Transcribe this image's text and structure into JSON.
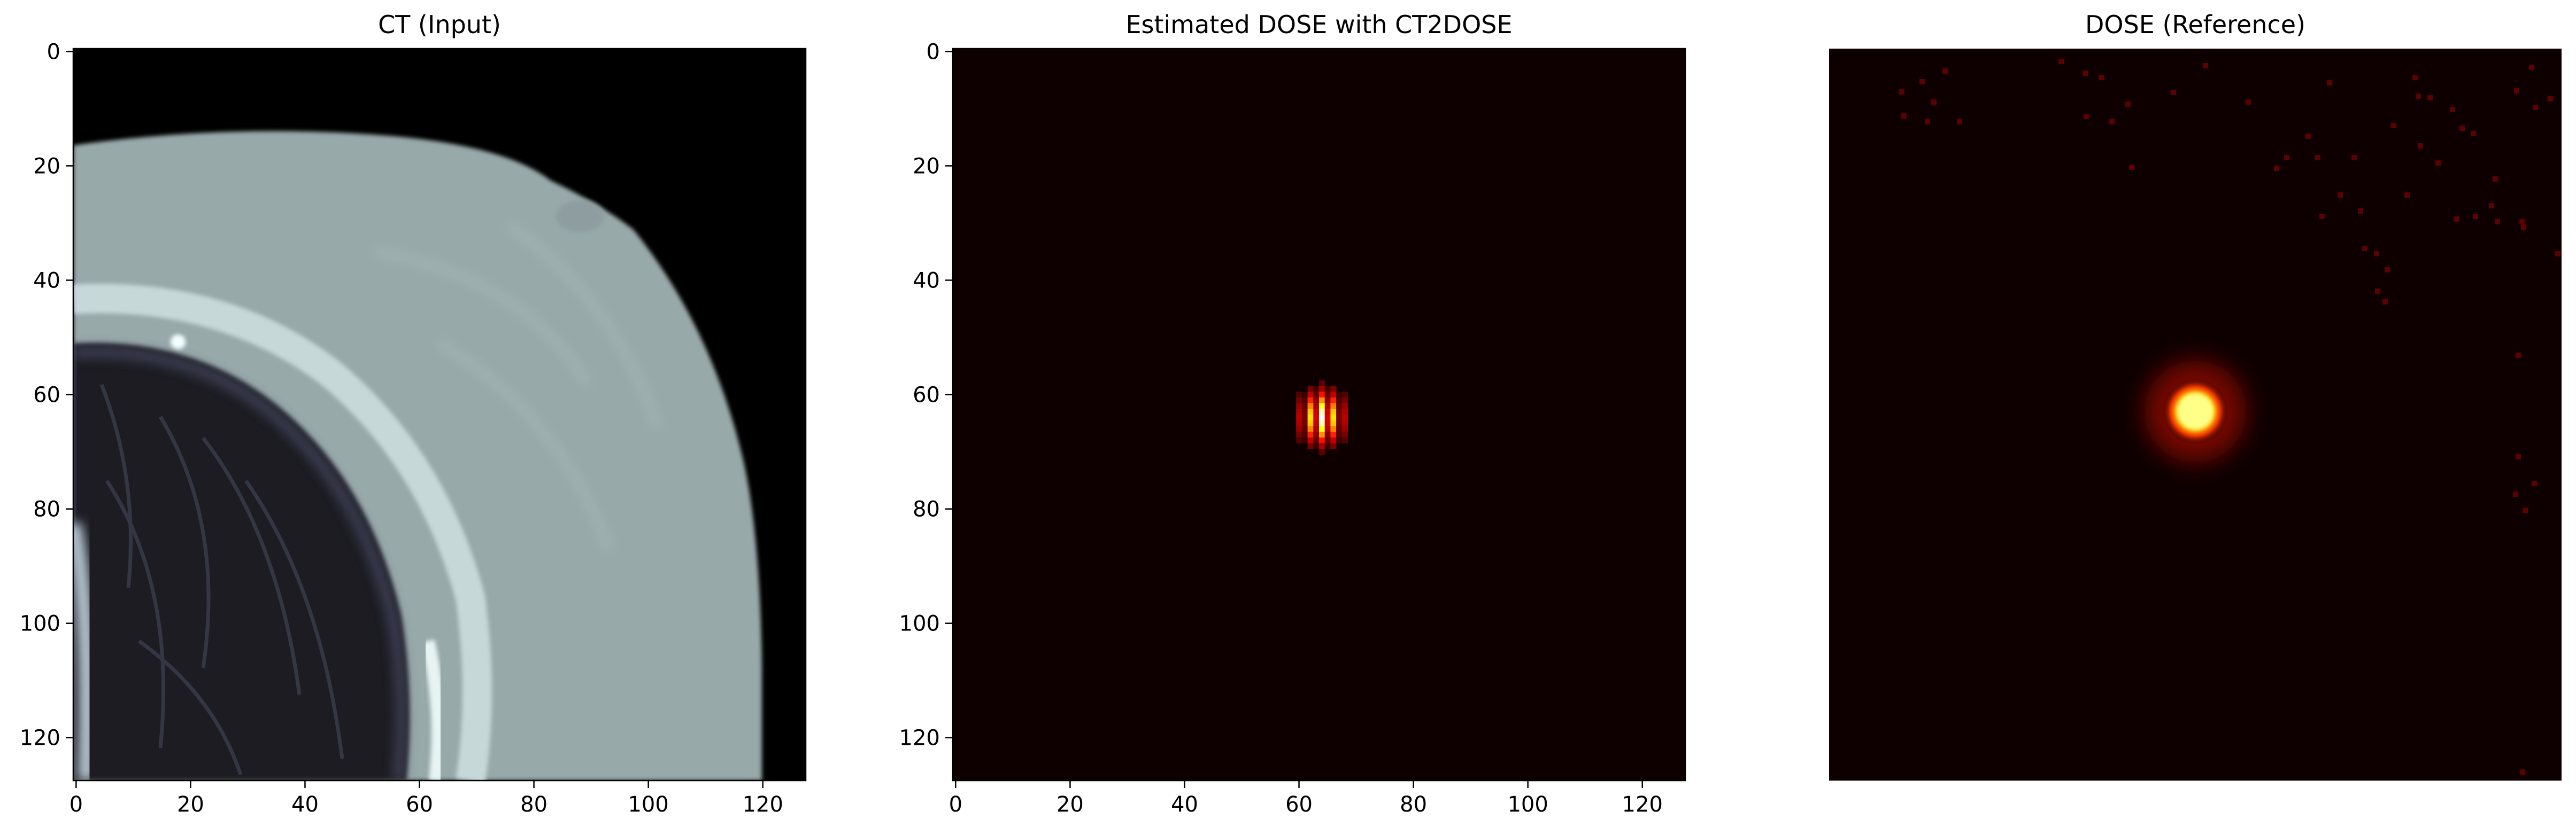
{
  "figure": {
    "panels": [
      {
        "id": "ct",
        "title": "CT (Input)",
        "kind": "ct-image",
        "show_axes": true,
        "colormap": "bone",
        "x_ticks": [
          "0",
          "20",
          "40",
          "60",
          "80",
          "100",
          "120"
        ],
        "y_ticks": [
          "0",
          "20",
          "40",
          "60",
          "80",
          "100",
          "120"
        ]
      },
      {
        "id": "estimated",
        "title": "Estimated DOSE with CT2DOSE",
        "kind": "dose-estimate",
        "show_axes": true,
        "colormap": "hot",
        "x_ticks": [
          "0",
          "20",
          "40",
          "60",
          "80",
          "100",
          "120"
        ],
        "y_ticks": [
          "0",
          "20",
          "40",
          "60",
          "80",
          "100",
          "120"
        ]
      },
      {
        "id": "reference",
        "title": "DOSE (Reference)",
        "kind": "dose-reference",
        "show_axes": false,
        "colormap": "hot"
      }
    ]
  },
  "colors": {
    "dose_background": "#0e0000",
    "ct_background": "#000000",
    "hot_peak": "#ffff66",
    "hot_mid": "#ff9900",
    "hot_low": "#aa0000",
    "bone_soft_tissue": "#9aacac",
    "bone_bright": "#dfeeee",
    "lung_dark": "#202028"
  }
}
